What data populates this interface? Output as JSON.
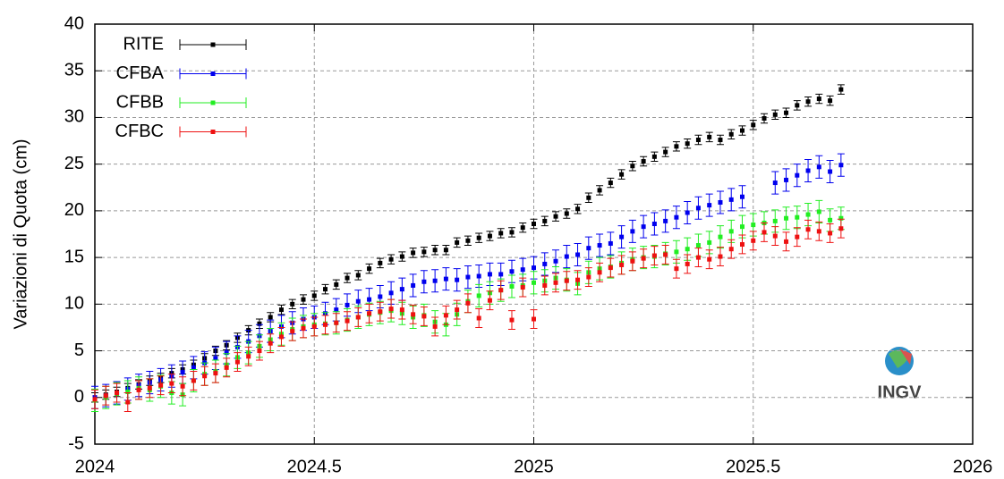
{
  "chart_data": {
    "type": "scatter",
    "ylabel": "Variazioni di Quota (cm)",
    "watermark": "INGV",
    "xlim": [
      2024,
      2026
    ],
    "xticks": [
      2024,
      2024.5,
      2025,
      2025.5,
      2026
    ],
    "ylim": [
      -5,
      40
    ],
    "yticks": [
      -5,
      0,
      5,
      10,
      15,
      20,
      25,
      30,
      35,
      40
    ],
    "grid": true,
    "legend": "upper left",
    "x": [
      2024,
      2024.025,
      2024.05,
      2024.075,
      2024.1,
      2024.125,
      2024.15,
      2024.175,
      2024.2,
      2024.225,
      2024.25,
      2024.275,
      2024.3,
      2024.325,
      2024.35,
      2024.375,
      2024.4,
      2024.425,
      2024.45,
      2024.475,
      2024.5,
      2024.525,
      2024.55,
      2024.575,
      2024.6,
      2024.625,
      2024.65,
      2024.675,
      2024.7,
      2024.725,
      2024.75,
      2024.775,
      2024.8,
      2024.825,
      2024.85,
      2024.875,
      2024.9,
      2024.925,
      2024.95,
      2024.975,
      2025,
      2025.025,
      2025.05,
      2025.075,
      2025.1,
      2025.125,
      2025.15,
      2025.175,
      2025.2,
      2025.225,
      2025.25,
      2025.275,
      2025.3,
      2025.325,
      2025.35,
      2025.375,
      2025.4,
      2025.425,
      2025.45,
      2025.475,
      2025.5,
      2025.525,
      2025.55,
      2025.575,
      2025.6,
      2025.625,
      2025.65,
      2025.675,
      2025.7
    ],
    "series": [
      {
        "name": "RITE",
        "color": "#000000",
        "yerr": 0.5,
        "values": [
          0,
          0.3,
          0.6,
          1.0,
          1.4,
          1.8,
          2.1,
          2.6,
          3.0,
          3.5,
          4.2,
          5.0,
          5.6,
          6.4,
          7.2,
          7.9,
          8.6,
          9.4,
          10.0,
          10.5,
          10.9,
          11.6,
          12.1,
          12.8,
          13.1,
          13.8,
          14.4,
          14.8,
          15.1,
          15.5,
          15.6,
          15.8,
          15.8,
          16.6,
          16.8,
          17.1,
          17.3,
          17.6,
          17.7,
          18.2,
          18.6,
          18.9,
          19.4,
          19.7,
          20.2,
          21.4,
          22.2,
          23.0,
          23.9,
          24.8,
          25.3,
          25.8,
          26.3,
          26.9,
          27.2,
          27.6,
          27.9,
          27.6,
          28.2,
          28.6,
          29.2,
          29.9,
          30.3,
          30.5,
          31.3,
          31.7,
          32.0,
          31.8,
          33.0
        ]
      },
      {
        "name": "CFBA",
        "color": "#0000ee",
        "yerr": 1.2,
        "values": [
          0,
          0.2,
          0.5,
          0.9,
          1.3,
          1.6,
          1.9,
          2.3,
          2.7,
          3.2,
          3.7,
          4.2,
          4.8,
          5.4,
          6.0,
          6.6,
          7.1,
          7.6,
          8.0,
          8.4,
          8.6,
          9.0,
          9.4,
          9.9,
          10.3,
          10.5,
          10.8,
          11.2,
          11.6,
          12.0,
          12.4,
          12.5,
          12.7,
          12.6,
          12.9,
          13.0,
          13.2,
          13.2,
          13.5,
          13.7,
          13.9,
          14.3,
          14.6,
          15.1,
          15.3,
          16.0,
          16.3,
          16.5,
          17.2,
          17.8,
          18.3,
          18.6,
          18.9,
          19.3,
          19.8,
          20.3,
          20.6,
          20.9,
          21.2,
          21.5,
          null,
          null,
          23.0,
          23.3,
          23.8,
          24.3,
          24.7,
          24.2,
          24.9
        ]
      },
      {
        "name": "CFBB",
        "color": "#22ee22",
        "yerr": 1.2,
        "values": [
          -0.3,
          0.0,
          0.4,
          0.6,
          1.0,
          0.8,
          1.2,
          0.5,
          0.3,
          1.8,
          2.5,
          2.8,
          3.5,
          4.3,
          4.8,
          5.5,
          6.2,
          6.8,
          7.3,
          7.6,
          7.8,
          7.9,
          8.0,
          8.3,
          8.6,
          8.9,
          9.1,
          9.3,
          9.0,
          8.6,
          8.8,
          8.1,
          7.8,
          8.9,
          10.3,
          10.9,
          11.2,
          11.5,
          11.9,
          12.0,
          12.3,
          12.5,
          12.8,
          12.6,
          12.2,
          13.4,
          13.8,
          14.0,
          14.4,
          14.8,
          15.0,
          15.1,
          15.4,
          15.6,
          15.9,
          16.3,
          16.6,
          17.2,
          17.8,
          18.3,
          18.5,
          18.7,
          18.9,
          19.2,
          19.3,
          19.6,
          19.9,
          19.0,
          19.2
        ]
      },
      {
        "name": "CFBC",
        "color": "#ee1111",
        "yerr": 1.0,
        "values": [
          -0.2,
          0.2,
          0.5,
          -0.5,
          0.8,
          1.0,
          1.3,
          1.5,
          1.2,
          1.8,
          2.3,
          2.6,
          3.2,
          3.8,
          4.4,
          5.0,
          5.8,
          6.5,
          7.1,
          7.4,
          7.6,
          7.8,
          8.0,
          8.2,
          8.6,
          9.0,
          9.2,
          9.5,
          9.4,
          8.9,
          8.7,
          7.6,
          8.8,
          9.4,
          10.1,
          8.5,
          10.4,
          11.5,
          8.3,
          11.8,
          8.4,
          12.0,
          12.3,
          12.5,
          12.6,
          12.9,
          13.4,
          13.9,
          14.2,
          14.6,
          14.9,
          15.2,
          15.3,
          13.8,
          14.3,
          15.0,
          14.8,
          15.1,
          15.9,
          16.4,
          16.8,
          17.7,
          17.3,
          16.7,
          17.2,
          18.0,
          17.8,
          17.6,
          18.1
        ]
      }
    ]
  }
}
